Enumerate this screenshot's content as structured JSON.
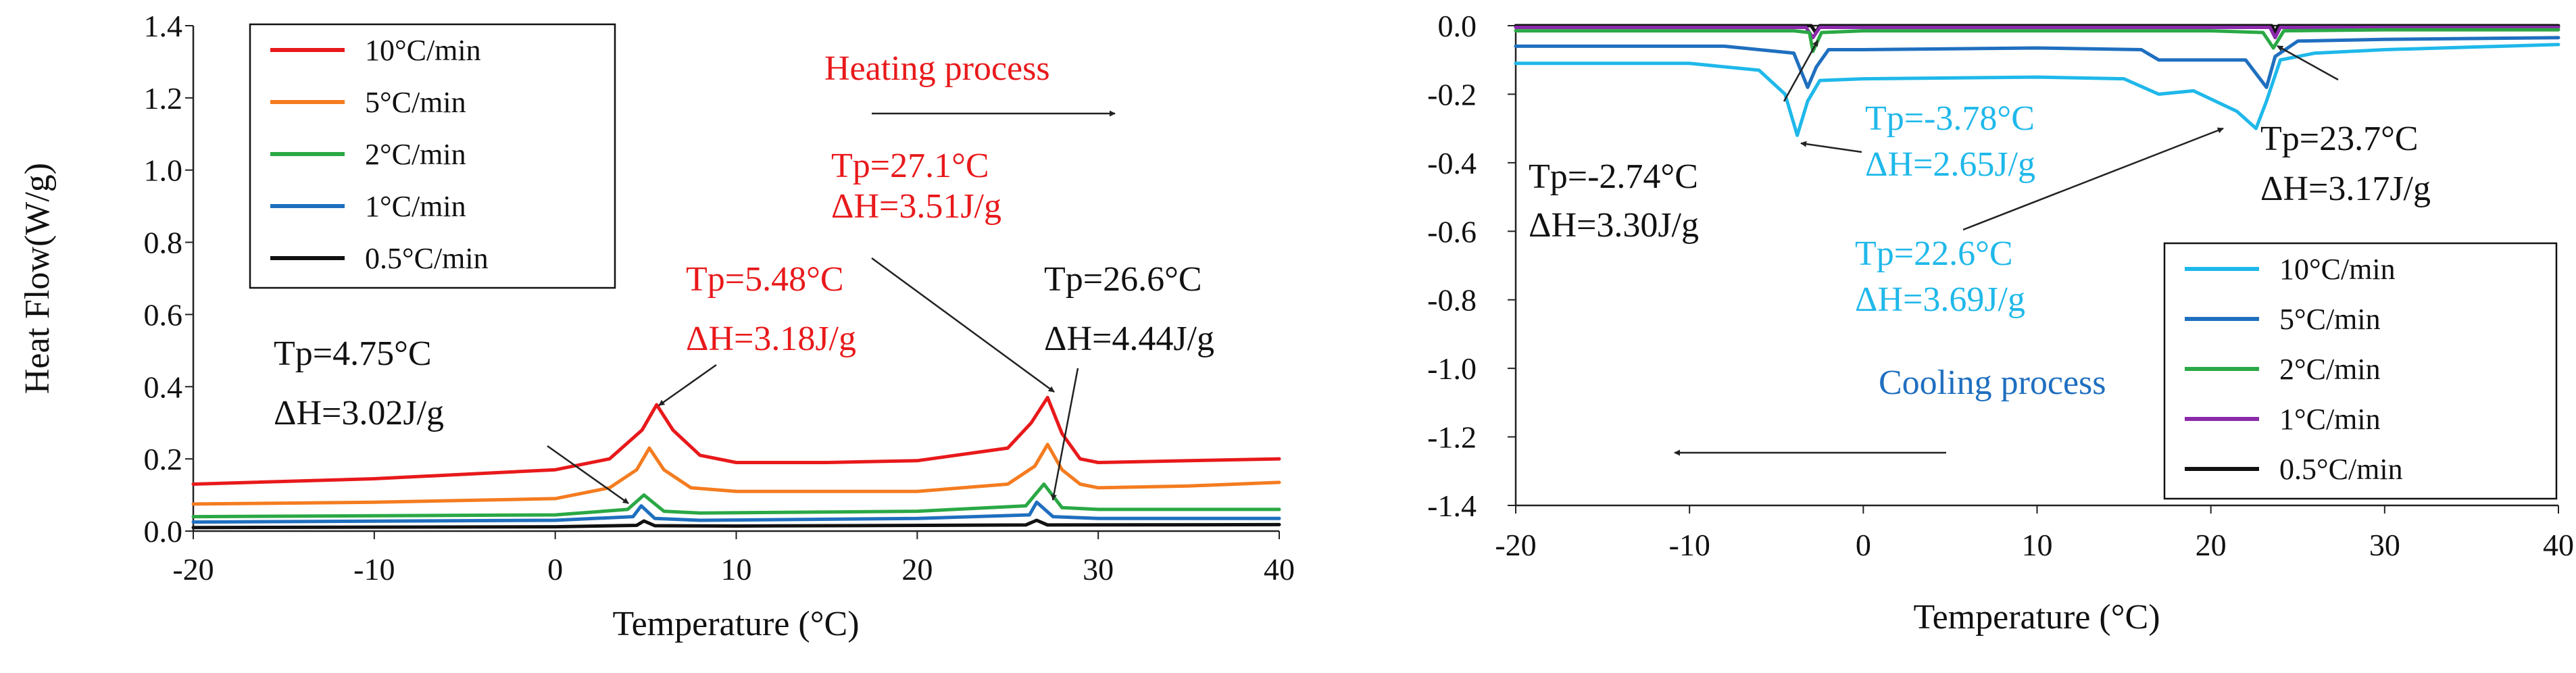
{
  "chart_data": [
    {
      "type": "line",
      "id": "heating",
      "title": "",
      "xlabel": "Temperature (°C)",
      "ylabel": "Heat Flow(W/g)",
      "xlim": [
        -20,
        40
      ],
      "ylim": [
        0,
        1.4
      ],
      "xticks": [
        -20,
        -10,
        0,
        10,
        20,
        30,
        40
      ],
      "yticks": [
        0.0,
        0.2,
        0.4,
        0.6,
        0.8,
        1.0,
        1.2,
        1.4
      ],
      "ytick_labels": [
        "0.0",
        "0.2",
        "0.4",
        "0.6",
        "0.8",
        "1.0",
        "1.2",
        "1.4"
      ],
      "grid": false,
      "legend_position": "top-left",
      "series": [
        {
          "name": "10°C/min",
          "color": "#e8191b",
          "x": [
            -20,
            -10,
            0,
            3,
            4.8,
            5.6,
            6.5,
            8,
            10,
            15,
            20,
            25,
            26.3,
            27.2,
            28,
            29,
            30,
            35,
            40
          ],
          "y": [
            0.13,
            0.145,
            0.17,
            0.2,
            0.28,
            0.35,
            0.28,
            0.21,
            0.19,
            0.19,
            0.195,
            0.23,
            0.3,
            0.37,
            0.27,
            0.2,
            0.19,
            0.195,
            0.2
          ]
        },
        {
          "name": "5°C/min",
          "color": "#f47c20",
          "x": [
            -20,
            -10,
            0,
            3,
            4.5,
            5.2,
            6,
            7.5,
            10,
            15,
            20,
            25,
            26.5,
            27.2,
            28,
            29,
            30,
            35,
            40
          ],
          "y": [
            0.075,
            0.08,
            0.09,
            0.12,
            0.17,
            0.23,
            0.17,
            0.12,
            0.11,
            0.11,
            0.11,
            0.13,
            0.18,
            0.24,
            0.17,
            0.13,
            0.12,
            0.125,
            0.135
          ]
        },
        {
          "name": "2°C/min",
          "color": "#2aa845",
          "x": [
            -20,
            0,
            4,
            4.9,
            6,
            8,
            20,
            26,
            27,
            28,
            30,
            40
          ],
          "y": [
            0.04,
            0.045,
            0.06,
            0.1,
            0.055,
            0.05,
            0.055,
            0.07,
            0.13,
            0.065,
            0.06,
            0.06
          ]
        },
        {
          "name": "1°C/min",
          "color": "#1f6fbf",
          "x": [
            -20,
            0,
            4.3,
            4.75,
            5.5,
            8,
            20,
            26.2,
            26.6,
            27.5,
            30,
            40
          ],
          "y": [
            0.025,
            0.03,
            0.04,
            0.07,
            0.035,
            0.03,
            0.035,
            0.045,
            0.08,
            0.04,
            0.035,
            0.035
          ]
        },
        {
          "name": "0.5°C/min",
          "color": "#111111",
          "x": [
            -20,
            0,
            4.5,
            4.9,
            5.5,
            10,
            26,
            26.6,
            27.2,
            40
          ],
          "y": [
            0.01,
            0.012,
            0.016,
            0.028,
            0.015,
            0.014,
            0.017,
            0.03,
            0.017,
            0.018
          ]
        }
      ],
      "title_annotation": {
        "text": "Heating process",
        "color": "#e8191b",
        "arrow": "right"
      },
      "annotations": [
        {
          "tp": "Tp=27.1°C",
          "dh": "ΔH=3.51J/g",
          "color": "#e8191b"
        },
        {
          "tp": "Tp=5.48°C",
          "dh": "ΔH=3.18J/g",
          "color": "#e8191b"
        },
        {
          "tp": "Tp=26.6°C",
          "dh": "ΔH=4.44J/g",
          "color": "#111111"
        },
        {
          "tp": "Tp=4.75°C",
          "dh": "ΔH=3.02J/g",
          "color": "#111111"
        }
      ]
    },
    {
      "type": "line",
      "id": "cooling",
      "title": "",
      "xlabel": "Temperature (°C)",
      "ylabel": "",
      "xlim": [
        -20,
        40
      ],
      "ylim": [
        -1.4,
        0.0
      ],
      "xticks": [
        -20,
        -10,
        0,
        10,
        20,
        30,
        40
      ],
      "yticks": [
        0.0,
        -0.2,
        -0.4,
        -0.6,
        -0.8,
        -1.0,
        -1.2,
        -1.4
      ],
      "ytick_labels": [
        "0.0",
        "-0.2",
        "-0.4",
        "-0.6",
        "-0.8",
        "-1.0",
        "-1.2",
        "-1.4"
      ],
      "grid": false,
      "legend_position": "bottom-right",
      "series": [
        {
          "name": "10°C/min",
          "color": "#1fb8ea",
          "x": [
            -20,
            -10,
            -6,
            -4.5,
            -3.8,
            -3.2,
            -2.5,
            0,
            10,
            15,
            17,
            19,
            21.5,
            22.6,
            23.2,
            24,
            26,
            30,
            40
          ],
          "y": [
            -0.11,
            -0.11,
            -0.13,
            -0.2,
            -0.32,
            -0.22,
            -0.16,
            -0.155,
            -0.15,
            -0.155,
            -0.2,
            -0.19,
            -0.25,
            -0.3,
            -0.22,
            -0.1,
            -0.08,
            -0.07,
            -0.055
          ]
        },
        {
          "name": "5°C/min",
          "color": "#1f6fbf",
          "x": [
            -20,
            -8,
            -4,
            -3.2,
            -2.7,
            -2,
            0,
            10,
            16,
            17,
            19,
            22,
            23.2,
            23.7,
            25,
            30,
            40
          ],
          "y": [
            -0.06,
            -0.06,
            -0.08,
            -0.18,
            -0.12,
            -0.07,
            -0.07,
            -0.065,
            -0.07,
            -0.1,
            -0.1,
            -0.1,
            -0.18,
            -0.09,
            -0.045,
            -0.04,
            -0.035
          ]
        },
        {
          "name": "2°C/min",
          "color": "#2aa845",
          "x": [
            -20,
            -4,
            -3.1,
            -2.9,
            -2.4,
            0,
            20,
            23,
            23.6,
            24.2,
            30,
            40
          ],
          "y": [
            -0.015,
            -0.015,
            -0.02,
            -0.075,
            -0.02,
            -0.015,
            -0.015,
            -0.02,
            -0.065,
            -0.015,
            -0.012,
            -0.012
          ]
        },
        {
          "name": "1°C/min",
          "color": "#8a2aaa",
          "x": [
            -20,
            -3.3,
            -2.9,
            -2.5,
            20,
            23.4,
            23.7,
            24,
            40
          ],
          "y": [
            -0.005,
            -0.005,
            -0.035,
            -0.005,
            -0.005,
            -0.005,
            -0.035,
            -0.005,
            -0.005
          ]
        },
        {
          "name": "0.5°C/min",
          "color": "#111111",
          "x": [
            -20,
            -3,
            -2.74,
            -2.5,
            20,
            23.5,
            23.7,
            23.9,
            40
          ],
          "y": [
            0.0,
            0.0,
            -0.02,
            0.0,
            0.0,
            0.0,
            -0.02,
            0.0,
            0.0
          ]
        }
      ],
      "title_annotation": {
        "text": "Cooling process",
        "color": "#1f6fbf",
        "arrow": "left"
      },
      "annotations": [
        {
          "tp": "Tp=-2.74°C",
          "dh": "ΔH=3.30J/g",
          "color": "#111111"
        },
        {
          "tp": "Tp=-3.78°C",
          "dh": "ΔH=2.65J/g",
          "color": "#1fb8ea"
        },
        {
          "tp": "Tp=22.6°C",
          "dh": "ΔH=3.69J/g",
          "color": "#1fb8ea"
        },
        {
          "tp": "Tp=23.7°C",
          "dh": "ΔH=3.17J/g",
          "color": "#111111"
        }
      ]
    }
  ]
}
